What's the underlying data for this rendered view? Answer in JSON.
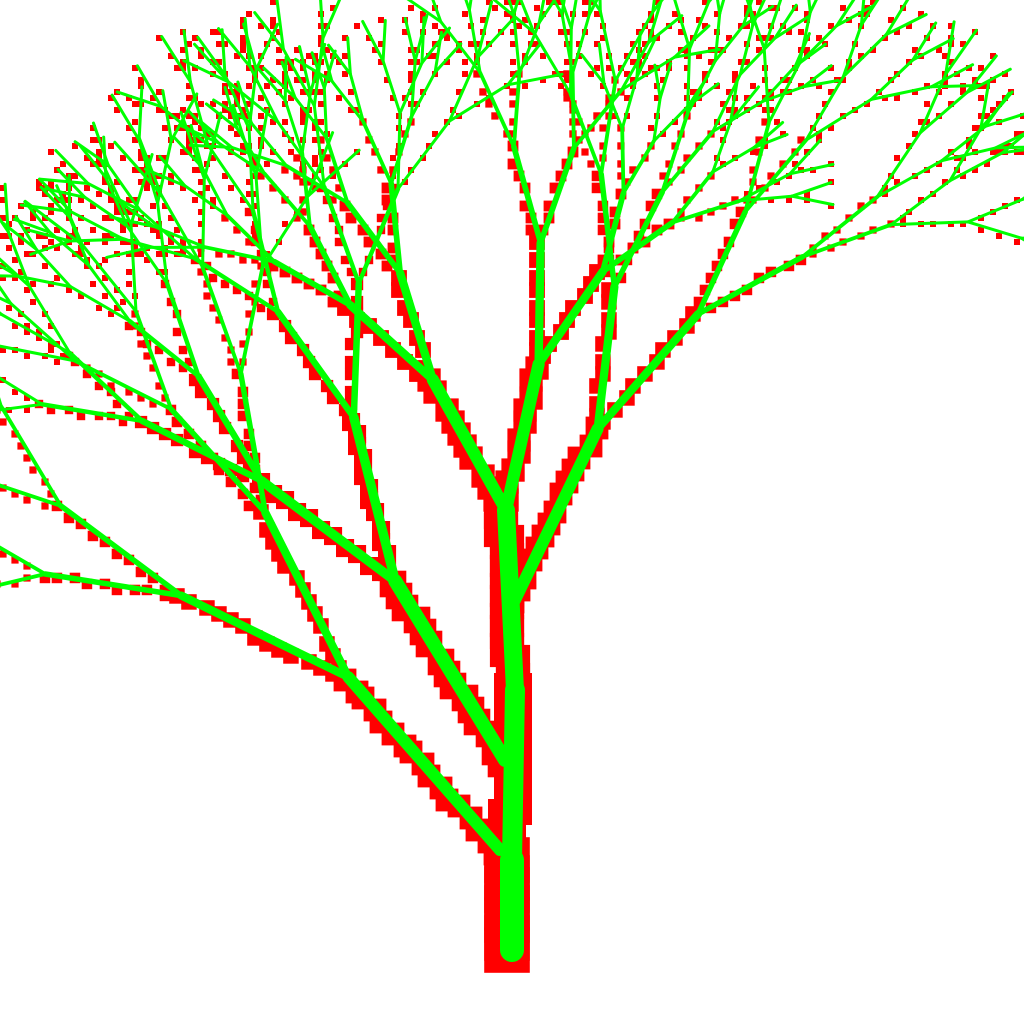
{
  "scene": {
    "subject": "fractal-tree",
    "background_color": "#ffffff",
    "branch_color": "#00ff00",
    "shadow_color": "#ff0000"
  }
}
